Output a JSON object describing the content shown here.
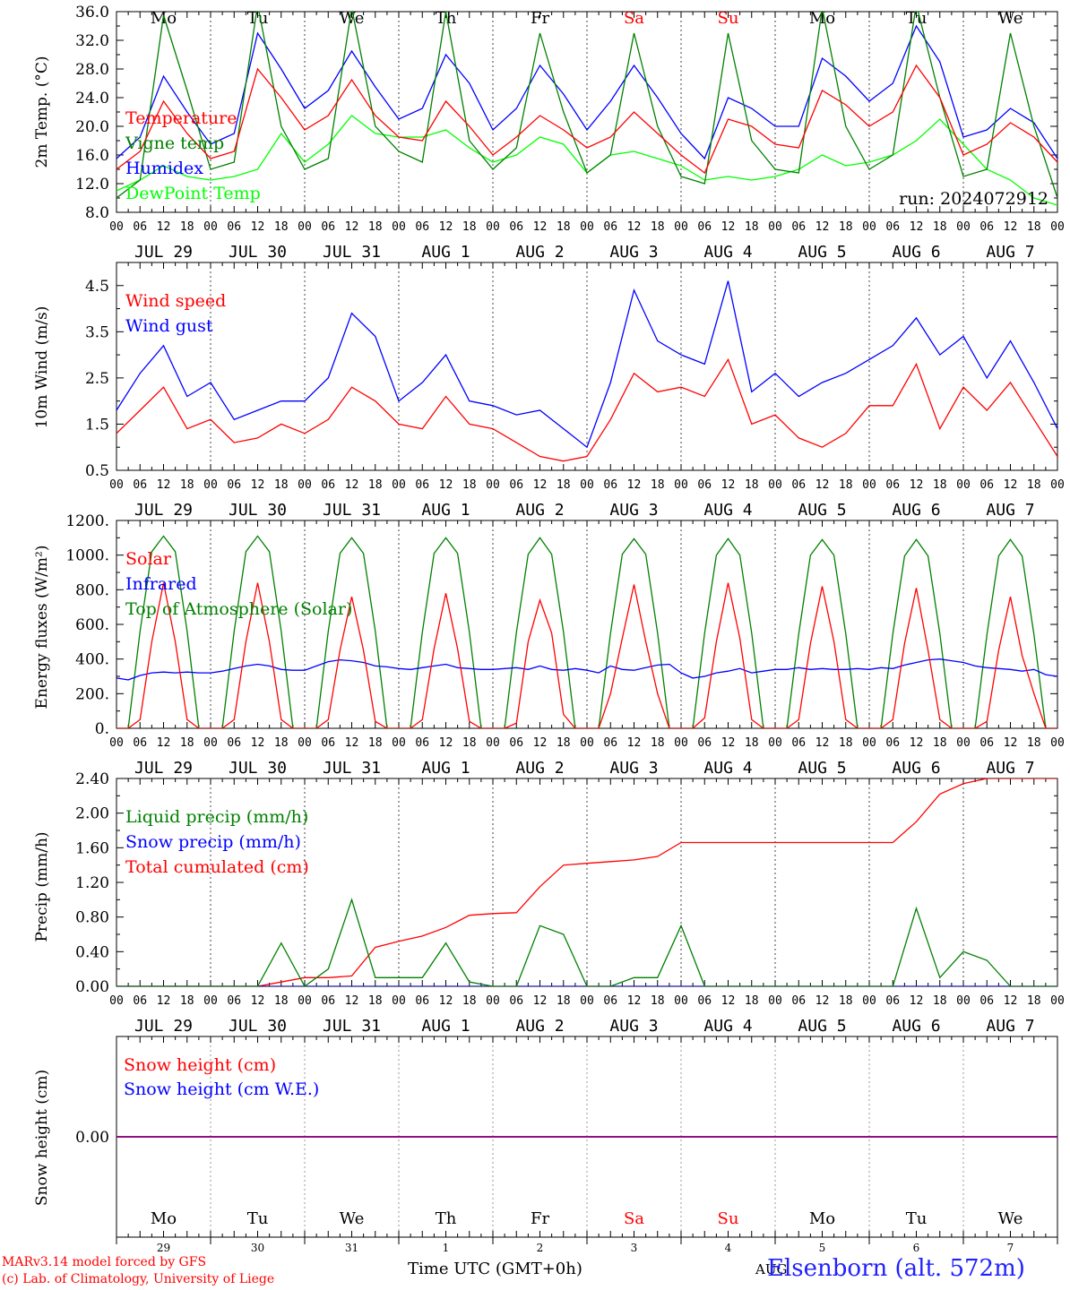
{
  "chart_data": [
    {
      "type": "line",
      "ylabel": "2m Temp. (°C)",
      "ylim": [
        8,
        36
      ],
      "ytick_labels": [
        "8.0",
        "12.0",
        "16.0",
        "20.0",
        "24.0",
        "28.0",
        "32.0",
        "36.0"
      ],
      "ytick_values": [
        8,
        12,
        16,
        20,
        24,
        28,
        32,
        36
      ],
      "day_names": [
        "Mo",
        "Tu",
        "We",
        "Th",
        "Fr",
        "Sa",
        "Su",
        "Mo",
        "Tu",
        "We"
      ],
      "day_name_colors": [
        "#000000",
        "#000000",
        "#000000",
        "#000000",
        "#000000",
        "#ff0000",
        "#ff0000",
        "#000000",
        "#000000",
        "#000000"
      ],
      "annotation": "run: 2024072912",
      "legend_placement": "left",
      "x_hours": [
        0,
        6,
        12,
        18,
        24,
        30,
        36,
        42,
        48,
        54,
        60,
        66,
        72,
        78,
        84,
        90,
        96,
        102,
        108,
        114,
        120,
        126,
        132,
        138,
        144,
        150,
        156,
        162,
        168,
        174,
        180,
        186,
        192,
        198,
        204,
        210,
        216,
        222,
        228,
        234,
        240
      ],
      "series": [
        {
          "name": "Temperature",
          "color": "#ff0000",
          "values": [
            14.0,
            16.5,
            23.5,
            19.0,
            15.5,
            16.5,
            28.0,
            24.0,
            19.5,
            21.5,
            26.5,
            21.5,
            18.5,
            18.0,
            23.5,
            20.0,
            16.0,
            18.5,
            21.5,
            19.5,
            17.0,
            18.5,
            22.0,
            19.0,
            16.0,
            13.5,
            21.0,
            20.0,
            17.5,
            17.0,
            25.0,
            23.0,
            20.0,
            22.0,
            28.5,
            24.0,
            16.0,
            17.5,
            20.5,
            18.5,
            15.0
          ]
        },
        {
          "name": "Vigne temp",
          "color": "#008000",
          "values": [
            10.0,
            12.5,
            35.5,
            25.0,
            14.0,
            15.0,
            37.0,
            20.0,
            14.0,
            15.5,
            36.5,
            20.0,
            16.5,
            15.0,
            36.0,
            18.0,
            14.0,
            17.0,
            33.0,
            22.0,
            13.5,
            16.0,
            33.0,
            20.0,
            13.0,
            12.0,
            33.0,
            18.0,
            14.0,
            13.5,
            36.5,
            20.0,
            14.0,
            16.0,
            37.0,
            24.0,
            13.0,
            14.0,
            33.0,
            20.0,
            10.0
          ]
        },
        {
          "name": "Humidex",
          "color": "#0000ff",
          "values": [
            15.5,
            18.5,
            27.0,
            22.0,
            17.5,
            19.0,
            33.0,
            28.0,
            22.5,
            25.0,
            30.5,
            25.5,
            21.0,
            22.5,
            30.0,
            26.0,
            19.5,
            22.5,
            28.5,
            24.5,
            19.5,
            23.5,
            28.5,
            24.0,
            19.0,
            15.5,
            24.0,
            22.5,
            20.0,
            20.0,
            29.5,
            27.0,
            23.5,
            26.0,
            34.0,
            29.0,
            18.5,
            19.5,
            22.5,
            20.5,
            15.5
          ]
        },
        {
          "name": "DewPoint Temp",
          "color": "#00ff00",
          "values": [
            11.0,
            12.5,
            14.5,
            13.0,
            12.5,
            13.0,
            14.0,
            19.0,
            15.0,
            17.5,
            21.5,
            19.0,
            18.5,
            18.5,
            19.5,
            17.0,
            15.0,
            16.0,
            18.5,
            17.5,
            13.5,
            16.0,
            16.5,
            15.5,
            14.5,
            12.5,
            13.0,
            12.5,
            13.0,
            14.0,
            16.0,
            14.5,
            15.0,
            16.0,
            18.0,
            21.0,
            17.5,
            14.0,
            12.5,
            10.0,
            9.0
          ]
        }
      ]
    },
    {
      "type": "line",
      "ylabel": "10m Wind (m/s)",
      "ylim": [
        0.5,
        5.0
      ],
      "ytick_labels": [
        "0.5",
        "1.5",
        "2.5",
        "3.5",
        "4.5"
      ],
      "ytick_values": [
        0.5,
        1.5,
        2.5,
        3.5,
        4.5
      ],
      "legend_placement": "top-left",
      "x_hours": [
        0,
        6,
        12,
        18,
        24,
        30,
        36,
        42,
        48,
        54,
        60,
        66,
        72,
        78,
        84,
        90,
        96,
        102,
        108,
        114,
        120,
        126,
        132,
        138,
        144,
        150,
        156,
        162,
        168,
        174,
        180,
        186,
        192,
        198,
        204,
        210,
        216,
        222,
        228,
        234,
        240
      ],
      "series": [
        {
          "name": "Wind speed",
          "color": "#ff0000",
          "values": [
            1.3,
            1.8,
            2.3,
            1.4,
            1.6,
            1.1,
            1.2,
            1.5,
            1.3,
            1.6,
            2.3,
            2.0,
            1.5,
            1.4,
            2.1,
            1.5,
            1.4,
            1.1,
            0.8,
            0.7,
            0.8,
            1.6,
            2.6,
            2.2,
            2.3,
            2.1,
            2.9,
            1.5,
            1.7,
            1.2,
            1.0,
            1.3,
            1.9,
            1.9,
            2.8,
            1.4,
            2.3,
            1.8,
            2.4,
            1.6,
            0.8
          ]
        },
        {
          "name": "Wind gust",
          "color": "#0000ff",
          "values": [
            1.8,
            2.6,
            3.2,
            2.1,
            2.4,
            1.6,
            1.8,
            2.0,
            2.0,
            2.5,
            3.9,
            3.4,
            2.0,
            2.4,
            3.0,
            2.0,
            1.9,
            1.7,
            1.8,
            1.4,
            1.0,
            2.4,
            4.4,
            3.3,
            3.0,
            2.8,
            4.6,
            2.2,
            2.6,
            2.1,
            2.4,
            2.6,
            2.9,
            3.2,
            3.8,
            3.0,
            3.4,
            2.5,
            3.3,
            2.4,
            1.4
          ]
        }
      ]
    },
    {
      "type": "line",
      "ylabel": "Energy fluxes (W/m²)",
      "ylim": [
        0,
        1200
      ],
      "ytick_labels": [
        "0.",
        "200.",
        "400.",
        "600.",
        "800.",
        "1000.",
        "1200."
      ],
      "ytick_values": [
        0,
        200,
        400,
        600,
        800,
        1000,
        1200
      ],
      "legend_placement": "top-left",
      "x_hours": [
        0,
        3,
        6,
        9,
        12,
        15,
        18,
        21,
        24,
        27,
        30,
        33,
        36,
        39,
        42,
        45,
        48,
        51,
        54,
        57,
        60,
        63,
        66,
        69,
        72,
        75,
        78,
        81,
        84,
        87,
        90,
        93,
        96,
        99,
        102,
        105,
        108,
        111,
        114,
        117,
        120,
        123,
        126,
        129,
        132,
        135,
        138,
        141,
        144,
        147,
        150,
        153,
        156,
        159,
        162,
        165,
        168,
        171,
        174,
        177,
        180,
        183,
        186,
        189,
        192,
        195,
        198,
        201,
        204,
        207,
        210,
        213,
        216,
        219,
        222,
        225,
        228,
        231,
        234,
        237,
        240
      ],
      "series": [
        {
          "name": "Solar",
          "color": "#ff0000",
          "values": [
            0,
            0,
            50,
            500,
            840,
            500,
            50,
            0,
            0,
            0,
            50,
            500,
            840,
            500,
            50,
            0,
            0,
            0,
            50,
            450,
            760,
            450,
            40,
            0,
            0,
            0,
            50,
            460,
            780,
            460,
            40,
            0,
            0,
            0,
            30,
            500,
            740,
            550,
            80,
            0,
            0,
            0,
            200,
            520,
            830,
            500,
            200,
            0,
            0,
            0,
            60,
            500,
            840,
            520,
            50,
            0,
            0,
            0,
            50,
            490,
            820,
            500,
            50,
            0,
            0,
            0,
            50,
            490,
            810,
            450,
            50,
            0,
            0,
            0,
            40,
            450,
            760,
            420,
            200,
            0,
            0
          ]
        },
        {
          "name": "Infrared",
          "color": "#0000ff",
          "values": [
            290,
            280,
            305,
            320,
            325,
            320,
            325,
            320,
            320,
            330,
            345,
            360,
            370,
            360,
            340,
            335,
            335,
            360,
            385,
            395,
            390,
            380,
            360,
            355,
            345,
            340,
            350,
            360,
            370,
            350,
            345,
            340,
            340,
            345,
            350,
            340,
            360,
            340,
            335,
            345,
            335,
            320,
            360,
            340,
            335,
            350,
            365,
            370,
            320,
            290,
            300,
            320,
            330,
            345,
            320,
            330,
            340,
            340,
            350,
            340,
            345,
            340,
            340,
            345,
            340,
            350,
            345,
            365,
            380,
            395,
            400,
            390,
            380,
            360,
            350,
            345,
            340,
            330,
            340,
            310,
            300
          ]
        },
        {
          "name": "Top of Atmosphere (Solar)",
          "color": "#008000",
          "values": [
            0,
            0,
            560,
            1020,
            1110,
            1020,
            560,
            0,
            0,
            0,
            560,
            1020,
            1110,
            1020,
            560,
            0,
            0,
            0,
            560,
            1010,
            1100,
            1010,
            560,
            0,
            0,
            0,
            555,
            1010,
            1100,
            1010,
            555,
            0,
            0,
            0,
            555,
            1005,
            1100,
            1005,
            555,
            0,
            0,
            0,
            550,
            1005,
            1095,
            1005,
            550,
            0,
            0,
            0,
            550,
            1000,
            1095,
            1000,
            550,
            0,
            0,
            0,
            545,
            1000,
            1090,
            1000,
            545,
            0,
            0,
            0,
            545,
            995,
            1090,
            995,
            545,
            0,
            0,
            0,
            540,
            995,
            1090,
            995,
            540,
            0,
            0
          ]
        }
      ]
    },
    {
      "type": "line",
      "ylabel": "Precip (mm/h)",
      "ylim": [
        0,
        2.4
      ],
      "ytick_labels": [
        "0.00",
        "0.40",
        "0.80",
        "1.20",
        "1.60",
        "2.00",
        "2.40"
      ],
      "ytick_values": [
        0,
        0.4,
        0.8,
        1.2,
        1.6,
        2.0,
        2.4
      ],
      "legend_placement": "left",
      "x_hours": [
        0,
        6,
        12,
        18,
        24,
        30,
        36,
        42,
        48,
        54,
        60,
        66,
        72,
        78,
        84,
        90,
        96,
        102,
        108,
        114,
        120,
        126,
        132,
        138,
        144,
        150,
        156,
        162,
        168,
        174,
        180,
        186,
        192,
        198,
        204,
        210,
        216,
        222,
        228,
        234,
        240
      ],
      "series": [
        {
          "name": "Liquid precip (mm/h)",
          "color": "#008000",
          "values": [
            0,
            0,
            0,
            0,
            0,
            0,
            0,
            0.5,
            0,
            0.2,
            1.0,
            0.1,
            0.1,
            0.1,
            0.5,
            0.05,
            0,
            0,
            0.7,
            0.6,
            0,
            0,
            0.1,
            0.1,
            0.7,
            0,
            0,
            0,
            0,
            0,
            0,
            0,
            0,
            0,
            0.9,
            0.1,
            0.4,
            0.3,
            0,
            0,
            0
          ]
        },
        {
          "name": "Snow precip (mm/h)",
          "color": "#0000ff",
          "values": [
            0,
            0,
            0,
            0,
            0,
            0,
            0,
            0,
            0,
            0,
            0,
            0,
            0,
            0,
            0,
            0,
            0,
            0,
            0,
            0,
            0,
            0,
            0,
            0,
            0,
            0,
            0,
            0,
            0,
            0,
            0,
            0,
            0,
            0,
            0,
            0,
            0,
            0,
            0,
            0,
            0
          ]
        },
        {
          "name": "Total cumulated (cm)",
          "color": "#ff0000",
          "values": [
            0,
            0,
            0,
            0,
            0,
            0,
            0,
            0.05,
            0.1,
            0.1,
            0.12,
            0.45,
            0.52,
            0.58,
            0.68,
            0.82,
            0.84,
            0.85,
            1.15,
            1.4,
            1.42,
            1.44,
            1.46,
            1.5,
            1.66,
            1.66,
            1.66,
            1.66,
            1.66,
            1.66,
            1.66,
            1.66,
            1.66,
            1.66,
            1.9,
            2.22,
            2.34,
            2.4,
            2.4,
            2.4,
            2.4
          ]
        }
      ]
    },
    {
      "type": "line",
      "ylabel": "Snow height (cm)",
      "ylim": [
        -1,
        1
      ],
      "ytick_labels": [
        "0.00"
      ],
      "ytick_values": [
        0
      ],
      "legend_placement": "top-left",
      "x_hours": [
        0,
        240
      ],
      "series": [
        {
          "name": "Snow height (cm)",
          "color": "#ff0000",
          "values": [
            0,
            0
          ]
        },
        {
          "name": "Snow height (cm W.E.)",
          "color": "#0000ff",
          "values": [
            0,
            0
          ]
        }
      ],
      "day_names": [
        "Mo",
        "Tu",
        "We",
        "Th",
        "Fr",
        "Sa",
        "Su",
        "Mo",
        "Tu",
        "We"
      ],
      "day_name_colors": [
        "#000000",
        "#000000",
        "#000000",
        "#000000",
        "#000000",
        "#ff0000",
        "#ff0000",
        "#000000",
        "#000000",
        "#000000"
      ],
      "day_numbers": [
        "29",
        "30",
        "31",
        "1",
        "2",
        "3",
        "4",
        "5",
        "6",
        "7"
      ]
    }
  ],
  "shared_axis": {
    "hour_labels": [
      "00",
      "06",
      "12",
      "18"
    ],
    "date_labels": [
      "JUL 29",
      "JUL 30",
      "JUL 31",
      "AUG  1",
      "AUG  2",
      "AUG  3",
      "AUG  4",
      "AUG  5",
      "AUG  6",
      "AUG  7"
    ]
  },
  "footer": {
    "model_line": "MARv3.14 model forced by GFS",
    "copyright_line": "(c) Lab. of Climatology, University of Liege",
    "xlabel": "Time UTC (GMT+0h)",
    "overlap_label": "AUG",
    "station": "Elsenborn (alt. 572m)"
  }
}
